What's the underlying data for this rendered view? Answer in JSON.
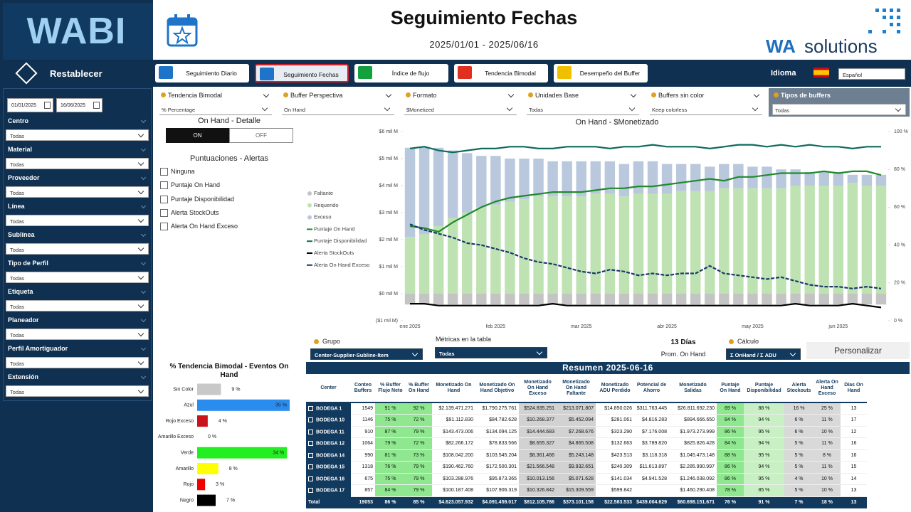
{
  "sidebar": {
    "logo": "WABI",
    "reset": "Restablecer",
    "date_from": "01/01/2025",
    "date_to": "16/06/2025",
    "filters": [
      {
        "label": "Centro",
        "value": "Todas"
      },
      {
        "label": "Material",
        "value": "Todas"
      },
      {
        "label": "Proveedor",
        "value": "Todas"
      },
      {
        "label": "Línea",
        "value": "Todas"
      },
      {
        "label": "Sublínea",
        "value": "Todas"
      },
      {
        "label": "Tipo de Perfil",
        "value": "Todas"
      },
      {
        "label": "Etiqueta",
        "value": "Todas"
      },
      {
        "label": "Planeador",
        "value": "Todas"
      },
      {
        "label": "Perfil Amortiguador",
        "value": "Todas"
      },
      {
        "label": "Extensión",
        "value": "Todas"
      }
    ]
  },
  "header": {
    "title": "Seguimiento Fechas",
    "date_range": "2025/01/01 - 2025/06/16",
    "brand_wa": "WA",
    "brand_solutions": "solutions"
  },
  "nav": {
    "buttons": [
      "Seguimiento Diario",
      "Seguimiento Fechas",
      "Índice de flujo",
      "Tendencia Bimodal",
      "Desempeño del Buffer"
    ],
    "language_label": "Idioma",
    "language": "Español"
  },
  "slicers": [
    {
      "label": "Tendencia Bimodal",
      "value": "% Percentage"
    },
    {
      "label": "Buffer Perspectiva",
      "value": "On Hand"
    },
    {
      "label": "Formato",
      "value": "$Monetized"
    },
    {
      "label": "Unidades Base",
      "value": "Todas"
    },
    {
      "label": "Buffers sin color",
      "value": "Keep colorless"
    },
    {
      "label": "Tipos de buffers",
      "value": "Todas"
    }
  ],
  "detail": {
    "title": "On Hand - Detalle",
    "on": "ON",
    "off": "OFF"
  },
  "alerts": {
    "title": "Puntuaciones - Alertas",
    "options": [
      "Ninguna",
      "Puntaje On Hand",
      "Puntaje Disponibilidad",
      "Alerta StockOuts",
      "Alerta On Hand Exceso"
    ]
  },
  "chart_data": [
    {
      "type": "combo",
      "title": "On Hand - $Monetizado",
      "categories": [
        "ene 2025",
        null,
        null,
        null,
        null,
        null,
        "feb 2025",
        null,
        null,
        null,
        null,
        null,
        "mar 2025",
        null,
        null,
        null,
        null,
        null,
        "abr 2025",
        null,
        null,
        null,
        null,
        null,
        "may 2025",
        null,
        null,
        null,
        null,
        null,
        "jun 2025",
        null,
        null,
        null
      ],
      "ylim": [
        -1,
        6
      ],
      "yticks": [
        {
          "value": 6,
          "label": "$6 mil M"
        },
        {
          "value": 5,
          "label": "$5 mil M"
        },
        {
          "value": 4,
          "label": "$4 mil M"
        },
        {
          "value": 3,
          "label": "$3 mil M"
        },
        {
          "value": 2,
          "label": "$2 mil M"
        },
        {
          "value": 1,
          "label": "$1 mil M"
        },
        {
          "value": 0,
          "label": "$0 mil M"
        },
        {
          "value": -1,
          "label": "($1 mil M)"
        }
      ],
      "y2lim": [
        0,
        100
      ],
      "y2ticks": [
        {
          "value": 100,
          "label": "100 %"
        },
        {
          "value": 80,
          "label": "80 %"
        },
        {
          "value": 60,
          "label": "60 %"
        },
        {
          "value": 40,
          "label": "40 %"
        },
        {
          "value": 20,
          "label": "20 %"
        },
        {
          "value": 0,
          "label": "0 %"
        }
      ],
      "series": [
        {
          "name": "Faltante",
          "type": "bar",
          "color": "#c4c4c4",
          "values": [
            -0.4,
            -0.4,
            -0.4,
            -0.4,
            -0.4,
            -0.4,
            -0.4,
            -0.4,
            -0.4,
            -0.4,
            -0.4,
            -0.4,
            -0.4,
            -0.4,
            -0.4,
            -0.4,
            -0.4,
            -0.4,
            -0.4,
            -0.4,
            -0.4,
            -0.4,
            -0.4,
            -0.4,
            -0.4,
            -0.4,
            -0.4,
            -0.4,
            -0.4,
            -0.4,
            -0.4,
            -0.4,
            -0.4,
            -0.4
          ]
        },
        {
          "name": "Requerido",
          "type": "bar",
          "color": "#bfe2b3",
          "values": [
            2.1,
            2.2,
            2.5,
            2.8,
            3.0,
            3.2,
            3.3,
            3.4,
            3.5,
            3.6,
            3.6,
            3.6,
            3.6,
            3.7,
            3.7,
            3.6,
            3.7,
            3.7,
            3.7,
            3.8,
            3.8,
            3.8,
            3.9,
            3.9,
            3.9,
            3.9,
            3.9,
            4.0,
            4.0,
            4.0,
            4.0,
            4.1,
            4.0,
            4.0
          ]
        },
        {
          "name": "Exceso",
          "type": "bar",
          "color": "#b9c8dd",
          "values": [
            3.3,
            3.2,
            2.9,
            2.5,
            2.2,
            1.9,
            1.8,
            1.6,
            1.5,
            1.4,
            1.3,
            1.3,
            1.3,
            1.2,
            1.2,
            1.2,
            1.2,
            1.2,
            1.1,
            1.0,
            1.0,
            0.9,
            0.9,
            0.9,
            0.8,
            0.8,
            0.7,
            0.6,
            0.5,
            0.5,
            0.5,
            0.3,
            0.4,
            0.4
          ]
        },
        {
          "name": "Puntaje On Hand",
          "type": "line",
          "axis": "y2",
          "color": "#1f8a2a",
          "values": [
            50,
            49,
            47,
            52,
            56,
            60,
            63,
            65,
            66,
            67,
            68,
            68,
            68,
            69,
            70,
            70,
            71,
            71,
            72,
            73,
            74,
            75,
            74,
            76,
            76,
            77,
            78,
            78,
            78,
            79,
            78,
            79,
            79,
            77
          ]
        },
        {
          "name": "Puntaje Disponibilidad",
          "type": "line",
          "axis": "y2",
          "color": "#0e6b5e",
          "values": [
            91,
            92,
            90,
            89,
            90,
            91,
            91,
            92,
            92,
            91,
            91,
            92,
            92,
            92,
            91,
            92,
            92,
            93,
            92,
            92,
            92,
            91,
            92,
            93,
            93,
            92,
            93,
            92,
            93,
            92,
            92,
            91,
            92,
            92
          ]
        },
        {
          "name": "Alerta StockOuts",
          "type": "line",
          "axis": "y2",
          "color": "#000000",
          "values": [
            9,
            9,
            8,
            8,
            8,
            8,
            8,
            8,
            8,
            8,
            9,
            8,
            8,
            8,
            8,
            8,
            8,
            8,
            8,
            8,
            8,
            8,
            8,
            8,
            8,
            8,
            8,
            9,
            8,
            8,
            8,
            9,
            8,
            7
          ]
        },
        {
          "name": "Alerta On Hand Exceso",
          "type": "line",
          "axis": "y2",
          "color": "#1a3a6b",
          "dashed": true,
          "values": [
            51,
            48,
            46,
            44,
            41,
            40,
            38,
            36,
            33,
            31,
            30,
            28,
            26,
            25,
            27,
            26,
            24,
            25,
            24,
            25,
            25,
            29,
            25,
            24,
            23,
            22,
            23,
            21,
            19,
            18,
            18,
            17,
            18,
            17
          ]
        }
      ]
    },
    {
      "type": "hbar",
      "title": "% Tendencia Bimodal - Eventos On Hand",
      "categories": [
        "Sin Color",
        "Azul",
        "Rojo Exceso",
        "Amarillo Exceso",
        "Verde",
        "Amarillo",
        "Rojo",
        "Negro"
      ],
      "values": [
        9,
        35,
        4,
        0,
        34,
        8,
        3,
        7
      ],
      "value_labels": [
        "9 %",
        "35 %",
        "4 %",
        "0 %",
        "34 %",
        "8 %",
        "3 %",
        "7 %"
      ],
      "colors": [
        "#c8c8c8",
        "#2b8cf0",
        "#c8141a",
        "#e8c200",
        "#22ee22",
        "#ffff00",
        "#ee0000",
        "#000000"
      ]
    }
  ],
  "controls": {
    "grupo_label": "Grupo",
    "grupo": "Center-Supplier-Subline-Item",
    "metricas_label": "Métricas en la tabla",
    "metricas": "Todas",
    "dias": "13 Días",
    "dias_label": "Prom. On Hand",
    "calculo_label": "Cálculo",
    "calculo": "Σ OnHand / Σ ADU",
    "personalizar": "Personalizar"
  },
  "table": {
    "title": "Resumen 2025-06-16",
    "columns": [
      "Center",
      "Conteo Buffers",
      "% Buffer Flujo Neto",
      "% Buffer On Hand",
      "Monetizado On Hand",
      "Monetizado On Hand Objetivo",
      "Monetizado On Hand Exceso",
      "Monetizado On Hand Faltante",
      "Monetizado ADU Perdido",
      "Potencial de Ahorro",
      "Monetizado Salidas",
      "Puntaje On Hand",
      "Puntaje Disponibilidad",
      "Alerta Stockouts",
      "Alerta On Hand Exceso",
      "Días On Hand"
    ],
    "rows": [
      [
        "BODEGA 1",
        "1549",
        "91 %",
        "92 %",
        "$2.139.471.271",
        "$1.790.275.761",
        "$524.835.251",
        "$213.071.807",
        "$14.850.026",
        "$311.763.445",
        "$26.811.692.230",
        "69 %",
        "88 %",
        "16 %",
        "25 %",
        "13"
      ],
      [
        "BODEGA 10",
        "1146",
        "75 %",
        "72 %",
        "$91.112.830",
        "$84.782.628",
        "$10.268.377",
        "$5.452.094",
        "$281.061",
        "$4.816.283",
        "$894.666.650",
        "84 %",
        "94 %",
        "6 %",
        "11 %",
        "17"
      ],
      [
        "BODEGA 11",
        "910",
        "87 %",
        "79 %",
        "$143.473.006",
        "$134.094.125",
        "$14.444.683",
        "$7.268.676",
        "$323.290",
        "$7.176.008",
        "$1.973.273.999",
        "86 %",
        "95 %",
        "6 %",
        "10 %",
        "12"
      ],
      [
        "BODEGA 12",
        "1064",
        "79 %",
        "72 %",
        "$82.266.172",
        "$78.833.566",
        "$8.655.327",
        "$4.865.508",
        "$132.663",
        "$3.789.820",
        "$825.826.428",
        "84 %",
        "94 %",
        "5 %",
        "11 %",
        "16"
      ],
      [
        "BODEGA 14",
        "990",
        "81 %",
        "73 %",
        "$108.042.200",
        "$103.545.204",
        "$8.361.466",
        "$5.243.148",
        "$423.513",
        "$3.118.318",
        "$1.045.473.148",
        "88 %",
        "95 %",
        "5 %",
        "8 %",
        "16"
      ],
      [
        "BODEGA 15",
        "1318",
        "76 %",
        "79 %",
        "$190.462.760",
        "$172.500.301",
        "$21.566.548",
        "$9.932.651",
        "$240.309",
        "$11.613.897",
        "$2.285.990.997",
        "86 %",
        "94 %",
        "5 %",
        "11 %",
        "15"
      ],
      [
        "BODEGA 16",
        "675",
        "75 %",
        "79 %",
        "$103.288.976",
        "$95.873.365",
        "$10.013.156",
        "$5.071.628",
        "$141.034",
        "$4.941.528",
        "$1.246.038.092",
        "86 %",
        "95 %",
        "4 %",
        "10 %",
        "14"
      ],
      [
        "BODEGA 17",
        "857",
        "84 %",
        "79 %",
        "$100.187.408",
        "$107.906.319",
        "$10.326.842",
        "$15.309.559",
        "$599.842",
        null,
        "$1.460.290.408",
        "78 %",
        "85 %",
        "5 %",
        "10 %",
        "13"
      ]
    ],
    "total": [
      "Total",
      "19053",
      "86 %",
      "85 %",
      "$4.623.057.932",
      "$4.091.459.017",
      "$812.105.786",
      "$373.101.158",
      "$22.583.533",
      "$439.004.629",
      "$60.698.151.671",
      "76 %",
      "91 %",
      "7 %",
      "18 %",
      "13"
    ]
  }
}
